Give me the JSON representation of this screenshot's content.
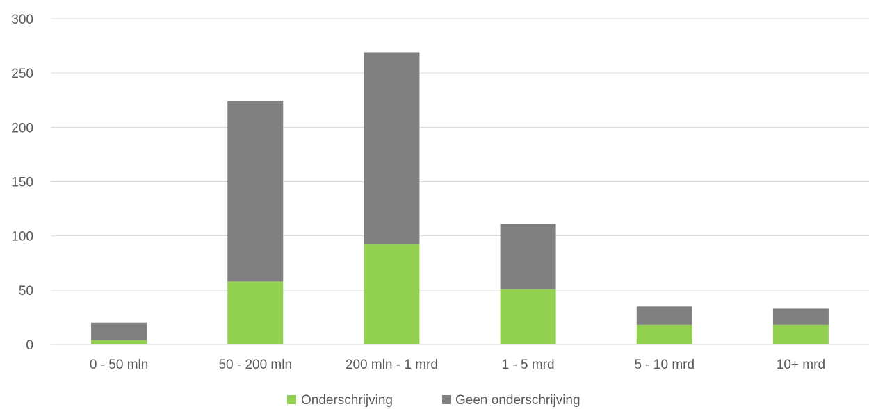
{
  "chart_data": {
    "type": "bar",
    "stacked": true,
    "categories": [
      "0 - 50 mln",
      "50 - 200 mln",
      "200 mln - 1 mrd",
      "1 - 5 mrd",
      "5 - 10 mrd",
      "10+ mrd"
    ],
    "series": [
      {
        "name": "Onderschrijving",
        "color": "#92d050",
        "values": [
          4,
          58,
          92,
          51,
          18,
          18
        ]
      },
      {
        "name": "Geen onderschrijving",
        "color": "#808080",
        "values": [
          16,
          166,
          177,
          60,
          17,
          15
        ]
      }
    ],
    "ylim": [
      0,
      300
    ],
    "yticks": [
      0,
      50,
      100,
      150,
      200,
      250,
      300
    ],
    "grid": true,
    "legend_position": "bottom",
    "title": "",
    "xlabel": "",
    "ylabel": ""
  }
}
